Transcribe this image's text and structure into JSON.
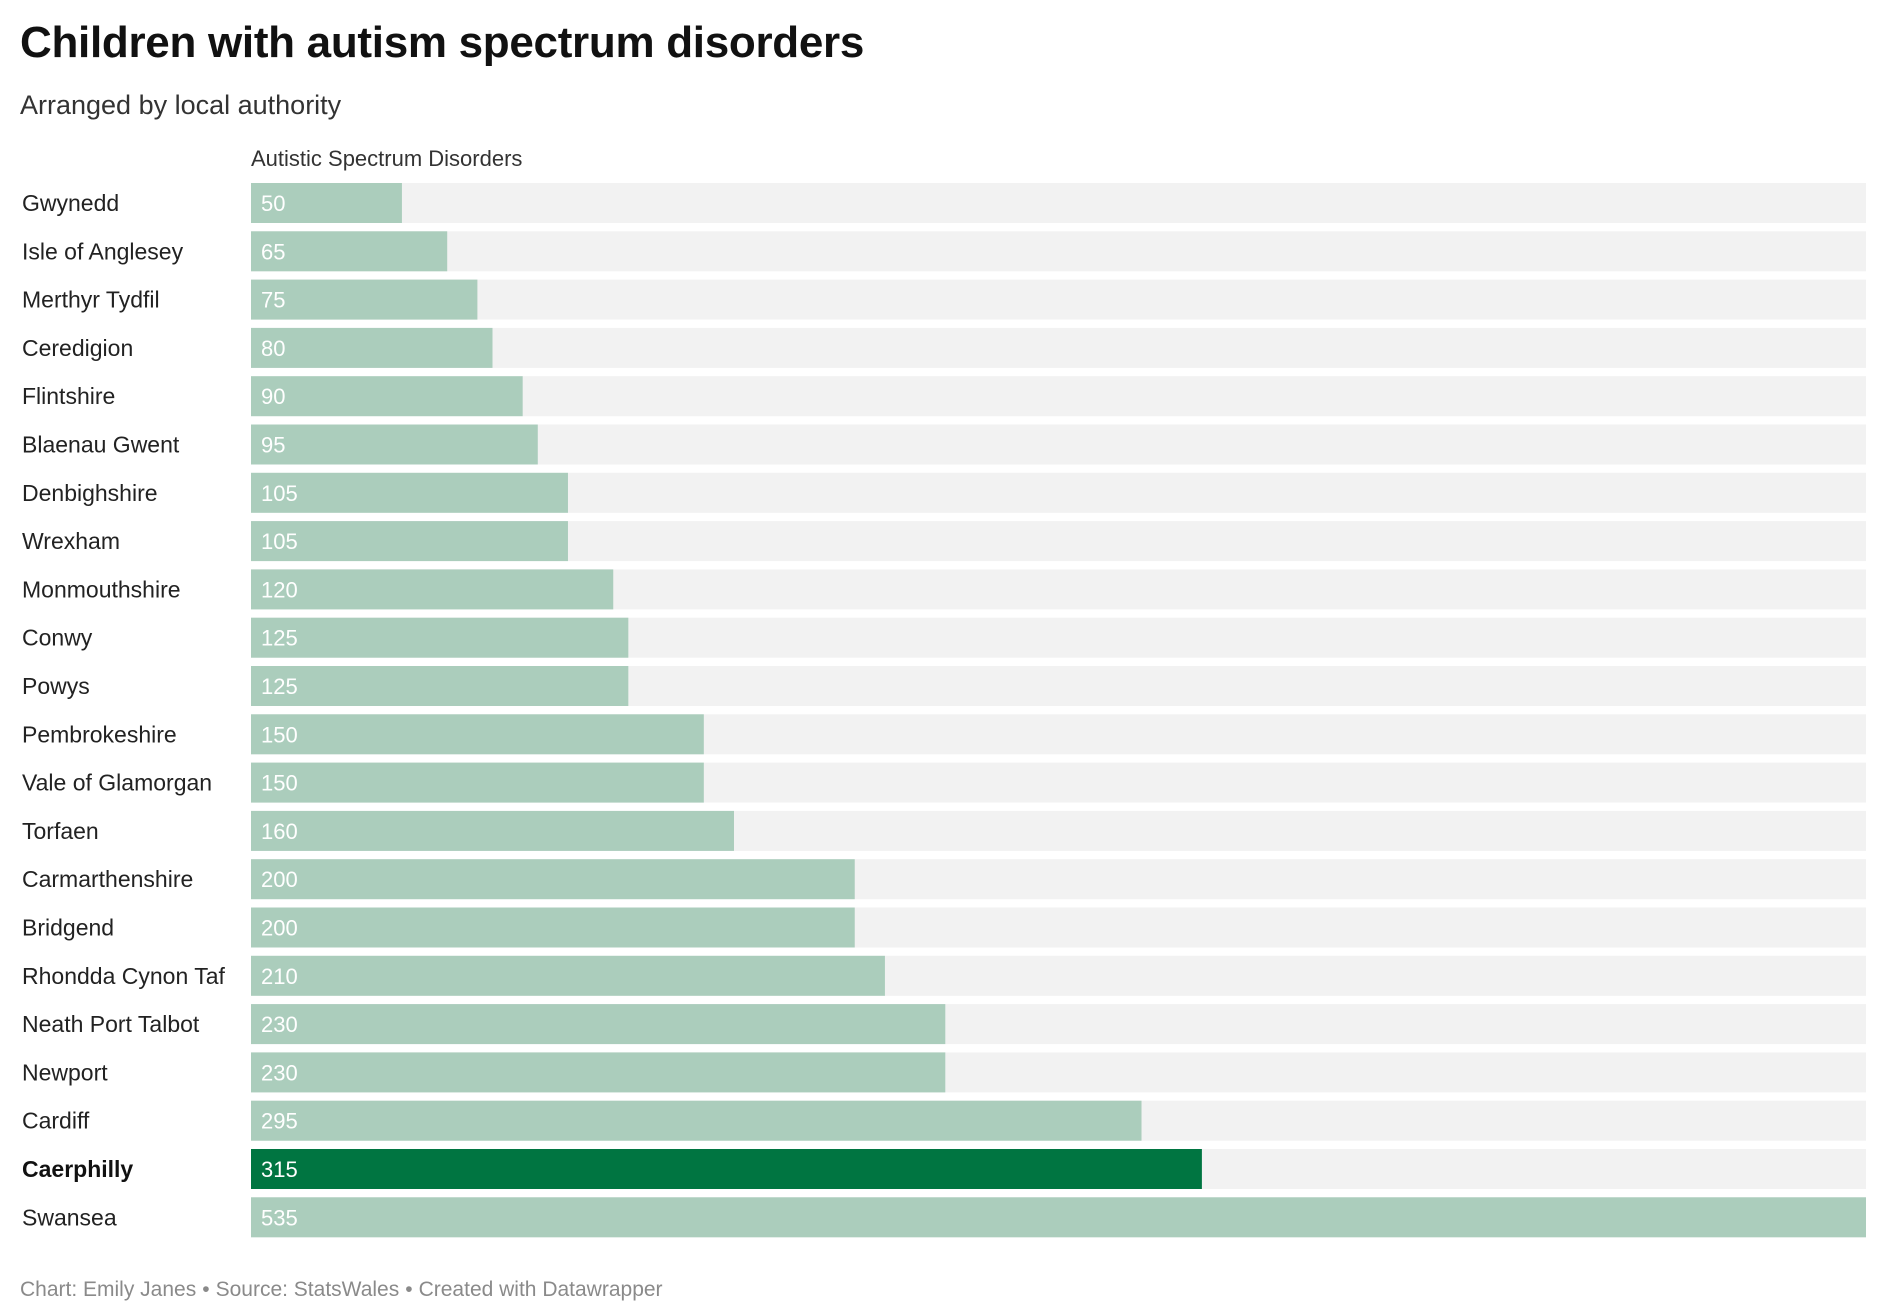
{
  "title": "Children with autism spectrum disorders",
  "subtitle": "Arranged by local authority",
  "column_header": "Autistic Spectrum Disorders",
  "footer": {
    "chart_credit": "Chart: Emily Janes",
    "source": "Source: StatsWales",
    "tool": "Created with Datawrapper"
  },
  "colors": {
    "bar": "#abcdbc",
    "highlight_bar": "#007541",
    "track": "#f2f2f2",
    "value_text": "#ffffff"
  },
  "chart_data": {
    "type": "bar",
    "orientation": "horizontal",
    "categories": [
      "Gwynedd",
      "Isle of Anglesey",
      "Merthyr Tydfil",
      "Ceredigion",
      "Flintshire",
      "Blaenau Gwent",
      "Denbighshire",
      "Wrexham",
      "Monmouthshire",
      "Conwy",
      "Powys",
      "Pembrokeshire",
      "Vale of Glamorgan",
      "Torfaen",
      "Carmarthenshire",
      "Bridgend",
      "Rhondda Cynon Taf",
      "Neath Port Talbot",
      "Newport",
      "Cardiff",
      "Caerphilly",
      "Swansea"
    ],
    "series": [
      {
        "name": "Autistic Spectrum Disorders",
        "values": [
          50,
          65,
          75,
          80,
          90,
          95,
          105,
          105,
          120,
          125,
          125,
          150,
          150,
          160,
          200,
          200,
          210,
          230,
          230,
          295,
          315,
          535
        ]
      }
    ],
    "highlight": "Caerphilly",
    "xlim": [
      0,
      535
    ],
    "grid": false,
    "legend": "none"
  }
}
